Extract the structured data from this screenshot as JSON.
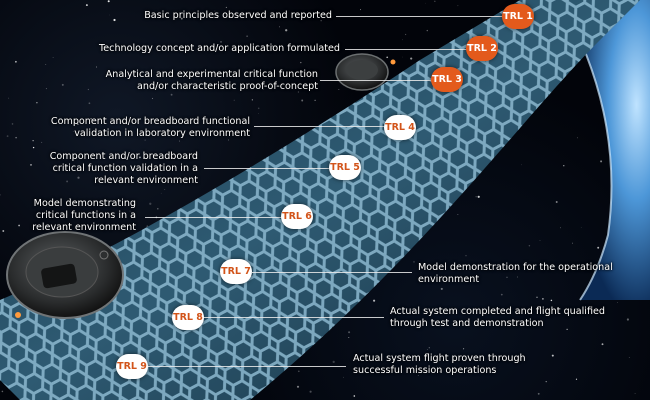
{
  "colors": {
    "badge_orange": "#e35a1c",
    "badge_white": "#ffffff",
    "badge_text_orange": "#d2541a",
    "tube_blue": "#6f9db5",
    "planet_blue": "#5aa6e8"
  },
  "levels": [
    {
      "badge": "TRL 1",
      "text": "Basic principles observed and reported"
    },
    {
      "badge": "TRL 2",
      "text": "Technology concept and/or application formulated"
    },
    {
      "badge": "TRL 3",
      "text": "Analytical and experimental critical function\nand/or characteristic proof-of-concept"
    },
    {
      "badge": "TRL 4",
      "text": "Component and/or breadboard functional\nvalidation in laboratory environment"
    },
    {
      "badge": "TRL 5",
      "text": "Component and/or breadboard\ncritical function validation in a\nrelevant environment"
    },
    {
      "badge": "TRL 6",
      "text": "Model demonstrating\ncritical functions in a\nrelevant environment"
    },
    {
      "badge": "TRL 7",
      "text": "Model demonstration for the operational\nenvironment"
    },
    {
      "badge": "TRL 8",
      "text": "Actual system completed and flight qualified\nthrough test and demonstration"
    },
    {
      "badge": "TRL 9",
      "text": "Actual system flight proven through\nsuccessful mission operations"
    }
  ]
}
